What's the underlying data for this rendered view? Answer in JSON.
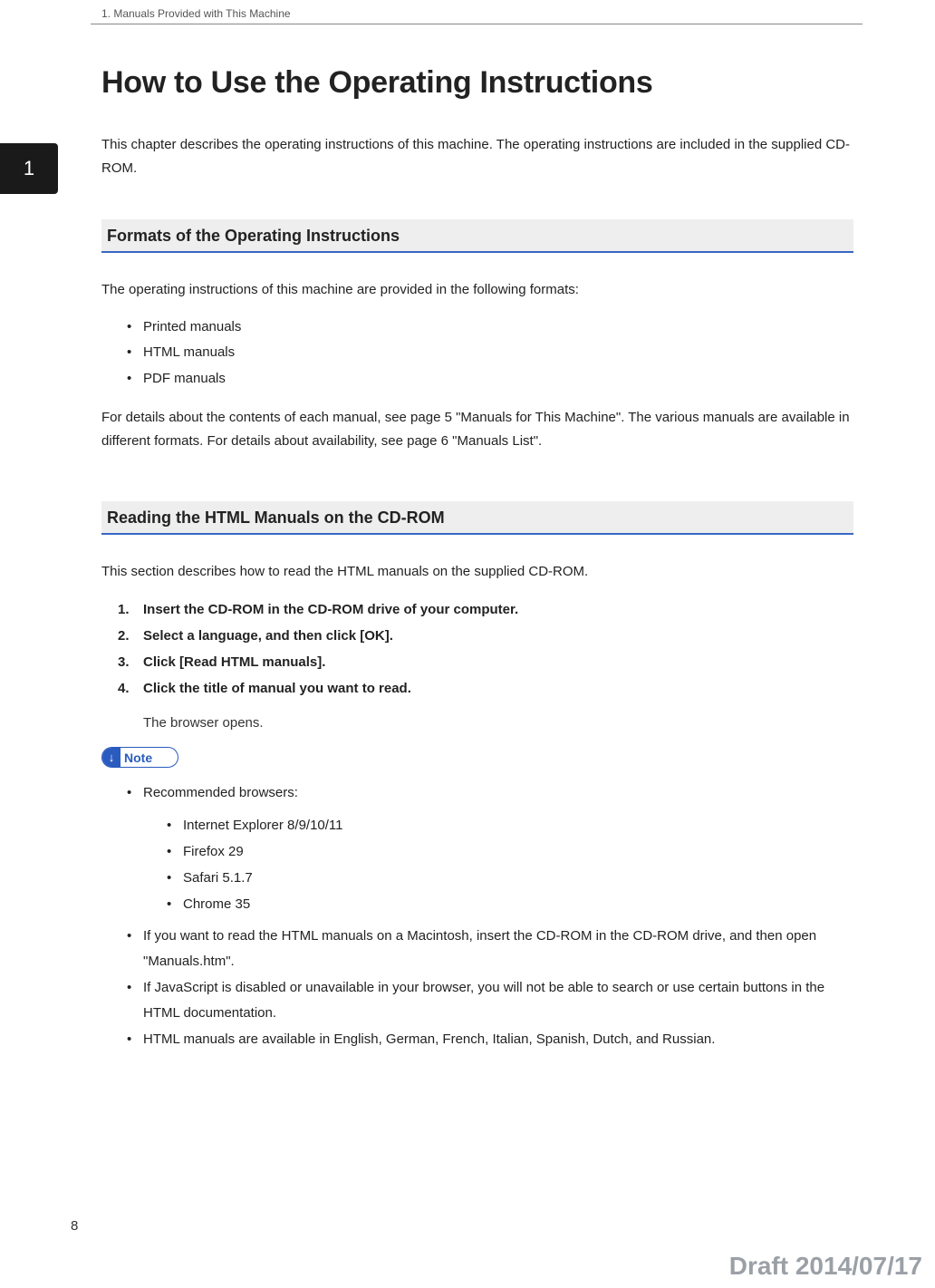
{
  "header": {
    "breadcrumb": "1. Manuals Provided with This Machine"
  },
  "tab": {
    "number": "1",
    "background": "#1a1a1a",
    "text_color": "#ffffff"
  },
  "title": "How to Use the Operating Instructions",
  "intro": "This chapter describes the operating instructions of this machine. The operating instructions are included in the supplied CD-ROM.",
  "section1": {
    "heading": "Formats of the Operating Instructions",
    "lead": "The operating instructions of this machine are provided in the following formats:",
    "items": [
      "Printed manuals",
      "HTML manuals",
      "PDF manuals"
    ],
    "tail": "For details about the contents of each manual, see page 5 \"Manuals for This Machine\". The various manuals are available in different formats. For details about availability, see page 6 \"Manuals List\"."
  },
  "section2": {
    "heading": "Reading the HTML Manuals on the CD-ROM",
    "lead": "This section describes how to read the HTML manuals on the supplied CD-ROM.",
    "steps": [
      "Insert the CD-ROM in the CD-ROM drive of your computer.",
      "Select a language, and then click [OK].",
      "Click [Read HTML manuals].",
      "Click the title of manual you want to read."
    ],
    "followup": "The browser opens.",
    "note_label": "Note",
    "note_icon": "↓",
    "notes": {
      "rec_label": "Recommended browsers:",
      "browsers": [
        "Internet Explorer 8/9/10/11",
        "Firefox 29",
        "Safari 5.1.7",
        "Chrome 35"
      ],
      "mac": "If you want to read the HTML manuals on a Macintosh, insert the CD-ROM in the CD-ROM drive, and then open \"Manuals.htm\".",
      "js": "If JavaScript is disabled or unavailable in your browser, you will not be able to search or use certain buttons in the HTML documentation.",
      "langs": "HTML manuals are available in English, German, French, Italian, Spanish, Dutch, and Russian."
    }
  },
  "page_number": "8",
  "draft": "Draft 2014/07/17",
  "colors": {
    "accent": "#3a67c4",
    "note_border": "#2a5bbf",
    "heading_bg": "#eeeeee",
    "draft_color": "#9aa0a6"
  }
}
